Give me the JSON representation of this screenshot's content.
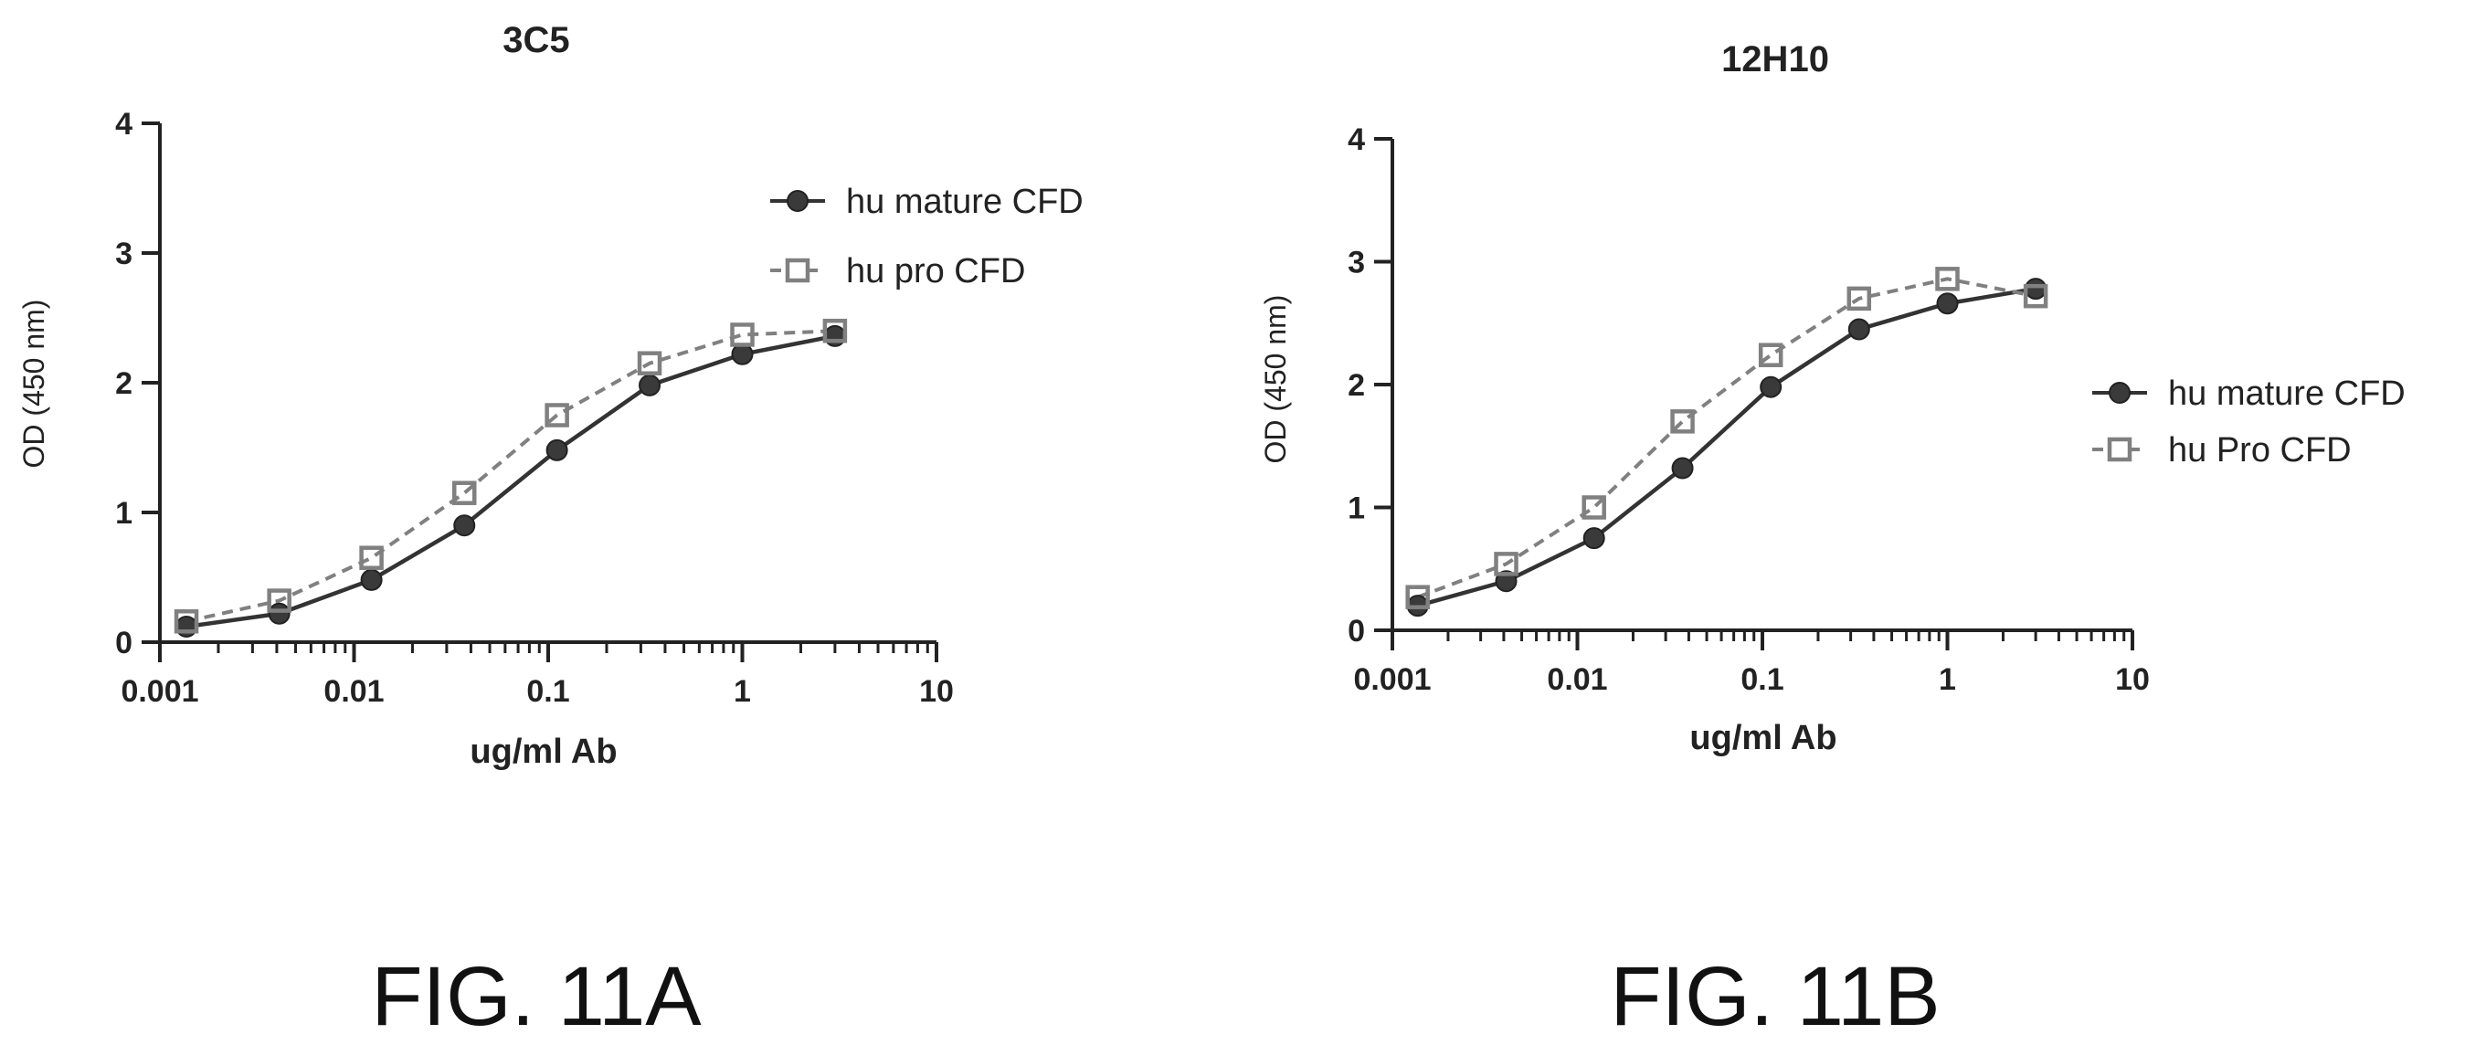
{
  "chart_data": [
    {
      "type": "line",
      "title": "3C5",
      "xlabel": "ug/ml Ab",
      "ylabel": "OD (450 nm)",
      "xscale": "log",
      "xlim": [
        0.001,
        10
      ],
      "ylim": [
        0,
        4
      ],
      "xticks": [
        "0.001",
        "0.01",
        "0.1",
        "1",
        "10"
      ],
      "yticks": [
        "0",
        "1",
        "2",
        "3",
        "4"
      ],
      "legend_position": "top-right",
      "series": [
        {
          "name": "hu mature CFD",
          "marker": "filled-circle",
          "line": "solid",
          "color": "#333333",
          "x": [
            0.00137,
            0.00412,
            0.0123,
            0.037,
            0.111,
            0.333,
            1,
            3
          ],
          "y": [
            0.12,
            0.22,
            0.48,
            0.9,
            1.48,
            1.98,
            2.22,
            2.36
          ]
        },
        {
          "name": "hu pro CFD",
          "marker": "open-square",
          "line": "dashed",
          "color": "#808080",
          "x": [
            0.00137,
            0.00412,
            0.0123,
            0.037,
            0.111,
            0.333,
            1,
            3
          ],
          "y": [
            0.16,
            0.32,
            0.65,
            1.15,
            1.75,
            2.15,
            2.37,
            2.4
          ]
        }
      ],
      "caption": "FIG. 11A"
    },
    {
      "type": "line",
      "title": "12H10",
      "xlabel": "ug/ml Ab",
      "ylabel": "OD (450 nm)",
      "xscale": "log",
      "xlim": [
        0.001,
        10
      ],
      "ylim": [
        0,
        4
      ],
      "xticks": [
        "0.001",
        "0.01",
        "0.1",
        "1",
        "10"
      ],
      "yticks": [
        "0",
        "1",
        "2",
        "3",
        "4"
      ],
      "legend_position": "right",
      "series": [
        {
          "name": "hu mature CFD",
          "marker": "filled-circle",
          "line": "solid",
          "color": "#333333",
          "x": [
            0.00137,
            0.00412,
            0.0123,
            0.037,
            0.111,
            0.333,
            1,
            3
          ],
          "y": [
            0.2,
            0.4,
            0.75,
            1.32,
            1.98,
            2.45,
            2.66,
            2.78
          ]
        },
        {
          "name": "hu Pro CFD",
          "marker": "open-square",
          "line": "dashed",
          "color": "#808080",
          "x": [
            0.00137,
            0.00412,
            0.0123,
            0.037,
            0.111,
            0.333,
            1,
            3
          ],
          "y": [
            0.27,
            0.54,
            1.0,
            1.7,
            2.24,
            2.7,
            2.86,
            2.72
          ]
        }
      ],
      "caption": "FIG. 11B"
    }
  ]
}
